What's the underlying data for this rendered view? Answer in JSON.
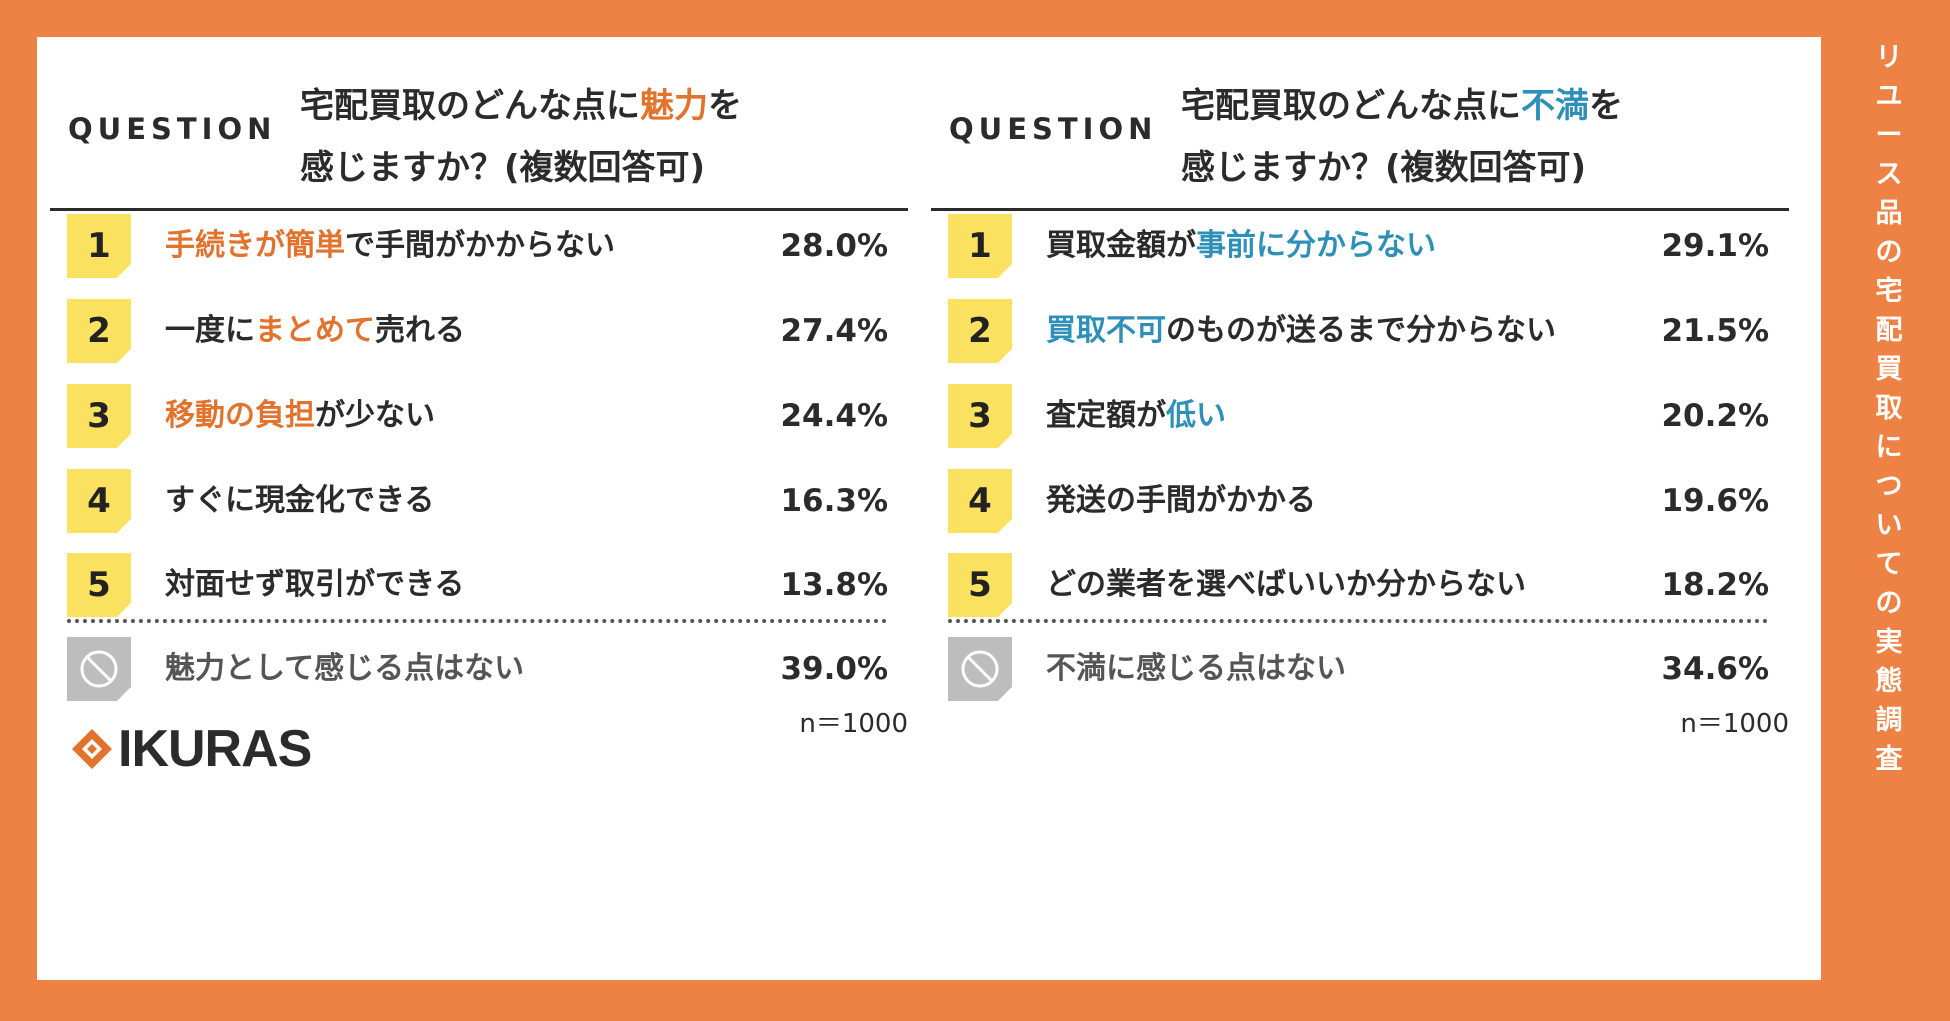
{
  "side_title": "リユース品の宅配買取についての実態調査",
  "brand": {
    "logo_text": "IKURAS",
    "accent": "#E2732D"
  },
  "colors": {
    "background": "#EE8244",
    "badge": "#FBE160",
    "orange": "#E2732D",
    "blue": "#2E8FB8"
  },
  "left": {
    "question_label": "QUESTION",
    "question_pre": "宅配買取のどんな点に",
    "question_highlight": "魅力",
    "question_post": "を",
    "question_line2": "感じますか？(複数回答可)",
    "items": [
      {
        "rank": "1",
        "pre": "",
        "hl": "手続きが簡単",
        "post": "で手間がかからない",
        "pct": "28.0%"
      },
      {
        "rank": "2",
        "pre": "一度に",
        "hl": "まとめて",
        "post": "売れる",
        "pct": "27.4%"
      },
      {
        "rank": "3",
        "pre": "",
        "hl": "移動の負担",
        "post": "が少ない",
        "pct": "24.4%"
      },
      {
        "rank": "4",
        "pre": "すぐに現金化できる",
        "hl": "",
        "post": "",
        "pct": "16.3%"
      },
      {
        "rank": "5",
        "pre": "対面せず取引ができる",
        "hl": "",
        "post": "",
        "pct": "13.8%"
      }
    ],
    "none_text": "魅力として感じる点はない",
    "none_pct": "39.0%",
    "n": "n＝1000"
  },
  "right": {
    "question_label": "QUESTION",
    "question_pre": "宅配買取のどんな点に",
    "question_highlight": "不満",
    "question_post": "を",
    "question_line2": "感じますか？(複数回答可)",
    "items": [
      {
        "rank": "1",
        "pre": "買取金額が",
        "hl": "事前に分からない",
        "post": "",
        "pct": "29.1%"
      },
      {
        "rank": "2",
        "pre": "",
        "hl": "買取不可",
        "post": "のものが送るまで分からない",
        "pct": "21.5%"
      },
      {
        "rank": "3",
        "pre": "査定額が",
        "hl": "低い",
        "post": "",
        "pct": "20.2%"
      },
      {
        "rank": "4",
        "pre": "発送の手間がかかる",
        "hl": "",
        "post": "",
        "pct": "19.6%"
      },
      {
        "rank": "5",
        "pre": "どの業者を選べばいいか分からない",
        "hl": "",
        "post": "",
        "pct": "18.2%"
      }
    ],
    "none_text": "不満に感じる点はない",
    "none_pct": "34.6%",
    "n": "n＝1000"
  }
}
